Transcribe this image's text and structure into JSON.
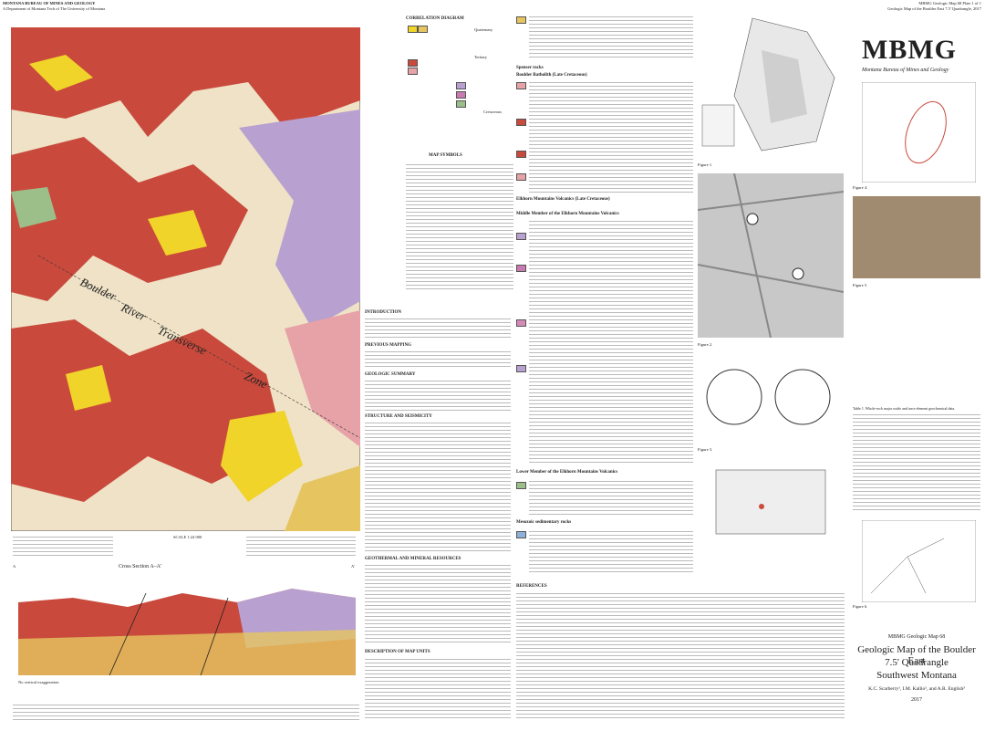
{
  "header": {
    "left_title": "MONTANA BUREAU OF MINES AND GEOLOGY",
    "left_subtitle": "A Department of Montana Tech of The University of Montana",
    "right_title": "MBMG Geologic Map 68 Plate 1 of 1",
    "right_subtitle": "Geologic Map of the Boulder East 7.5' Quadrangle, 2017"
  },
  "map": {
    "labels": [
      "Boulder",
      "River",
      "Transverse",
      "Zone"
    ],
    "scale": "SCALE 1:24 000",
    "section_ends": [
      "A",
      "A'"
    ]
  },
  "correlation": {
    "title": "CORRELATION DIAGRAM",
    "eras": [
      "Quaternary",
      "Tertiary",
      "Cretaceous"
    ]
  },
  "symbols": {
    "title": "MAP SYMBOLS"
  },
  "sections": [
    "INTRODUCTION",
    "PREVIOUS MAPPING",
    "GEOLOGIC SUMMARY",
    "STRUCTURE AND SEISMICITY",
    "GEOTHERMAL AND MINERAL RESOURCES",
    "DESCRIPTION OF MAP UNITS"
  ],
  "unit_groups": [
    "Spenser rocks",
    "Boulder Batholith (Late Cretaceous)",
    "Elkhorn Mountains Volcanics (Late Cretaceous)",
    "Middle Member of the Elkhorn Mountains Volcanics",
    "Lower Member of the Elkhorn Mountains Volcanics",
    "Mesozoic sedimentary rocks",
    "REFERENCES"
  ],
  "cross_section": {
    "title": "Cross Section A–A'",
    "note": "No vertical exaggeration"
  },
  "figures": [
    "Figure 1.",
    "Figure 2.",
    "Figure 3.",
    "Figure 4.",
    "Figure 5.",
    "Figure 6."
  ],
  "table_title": "Table 1. Whole-rock major oxide and trace element geochemical data.",
  "logo": {
    "mark": "MBMG",
    "name": "Montana Bureau of Mines and Geology"
  },
  "title_block": {
    "series": "MBMG Geologic Map 68",
    "title": "Geologic Map of the Boulder East",
    "title2": "7.5' Quadrangle",
    "region": "Southwest Montana",
    "authors": "K.C. Scarberry¹, I.M. Kallio², and A.R. English³",
    "year": "2017"
  }
}
